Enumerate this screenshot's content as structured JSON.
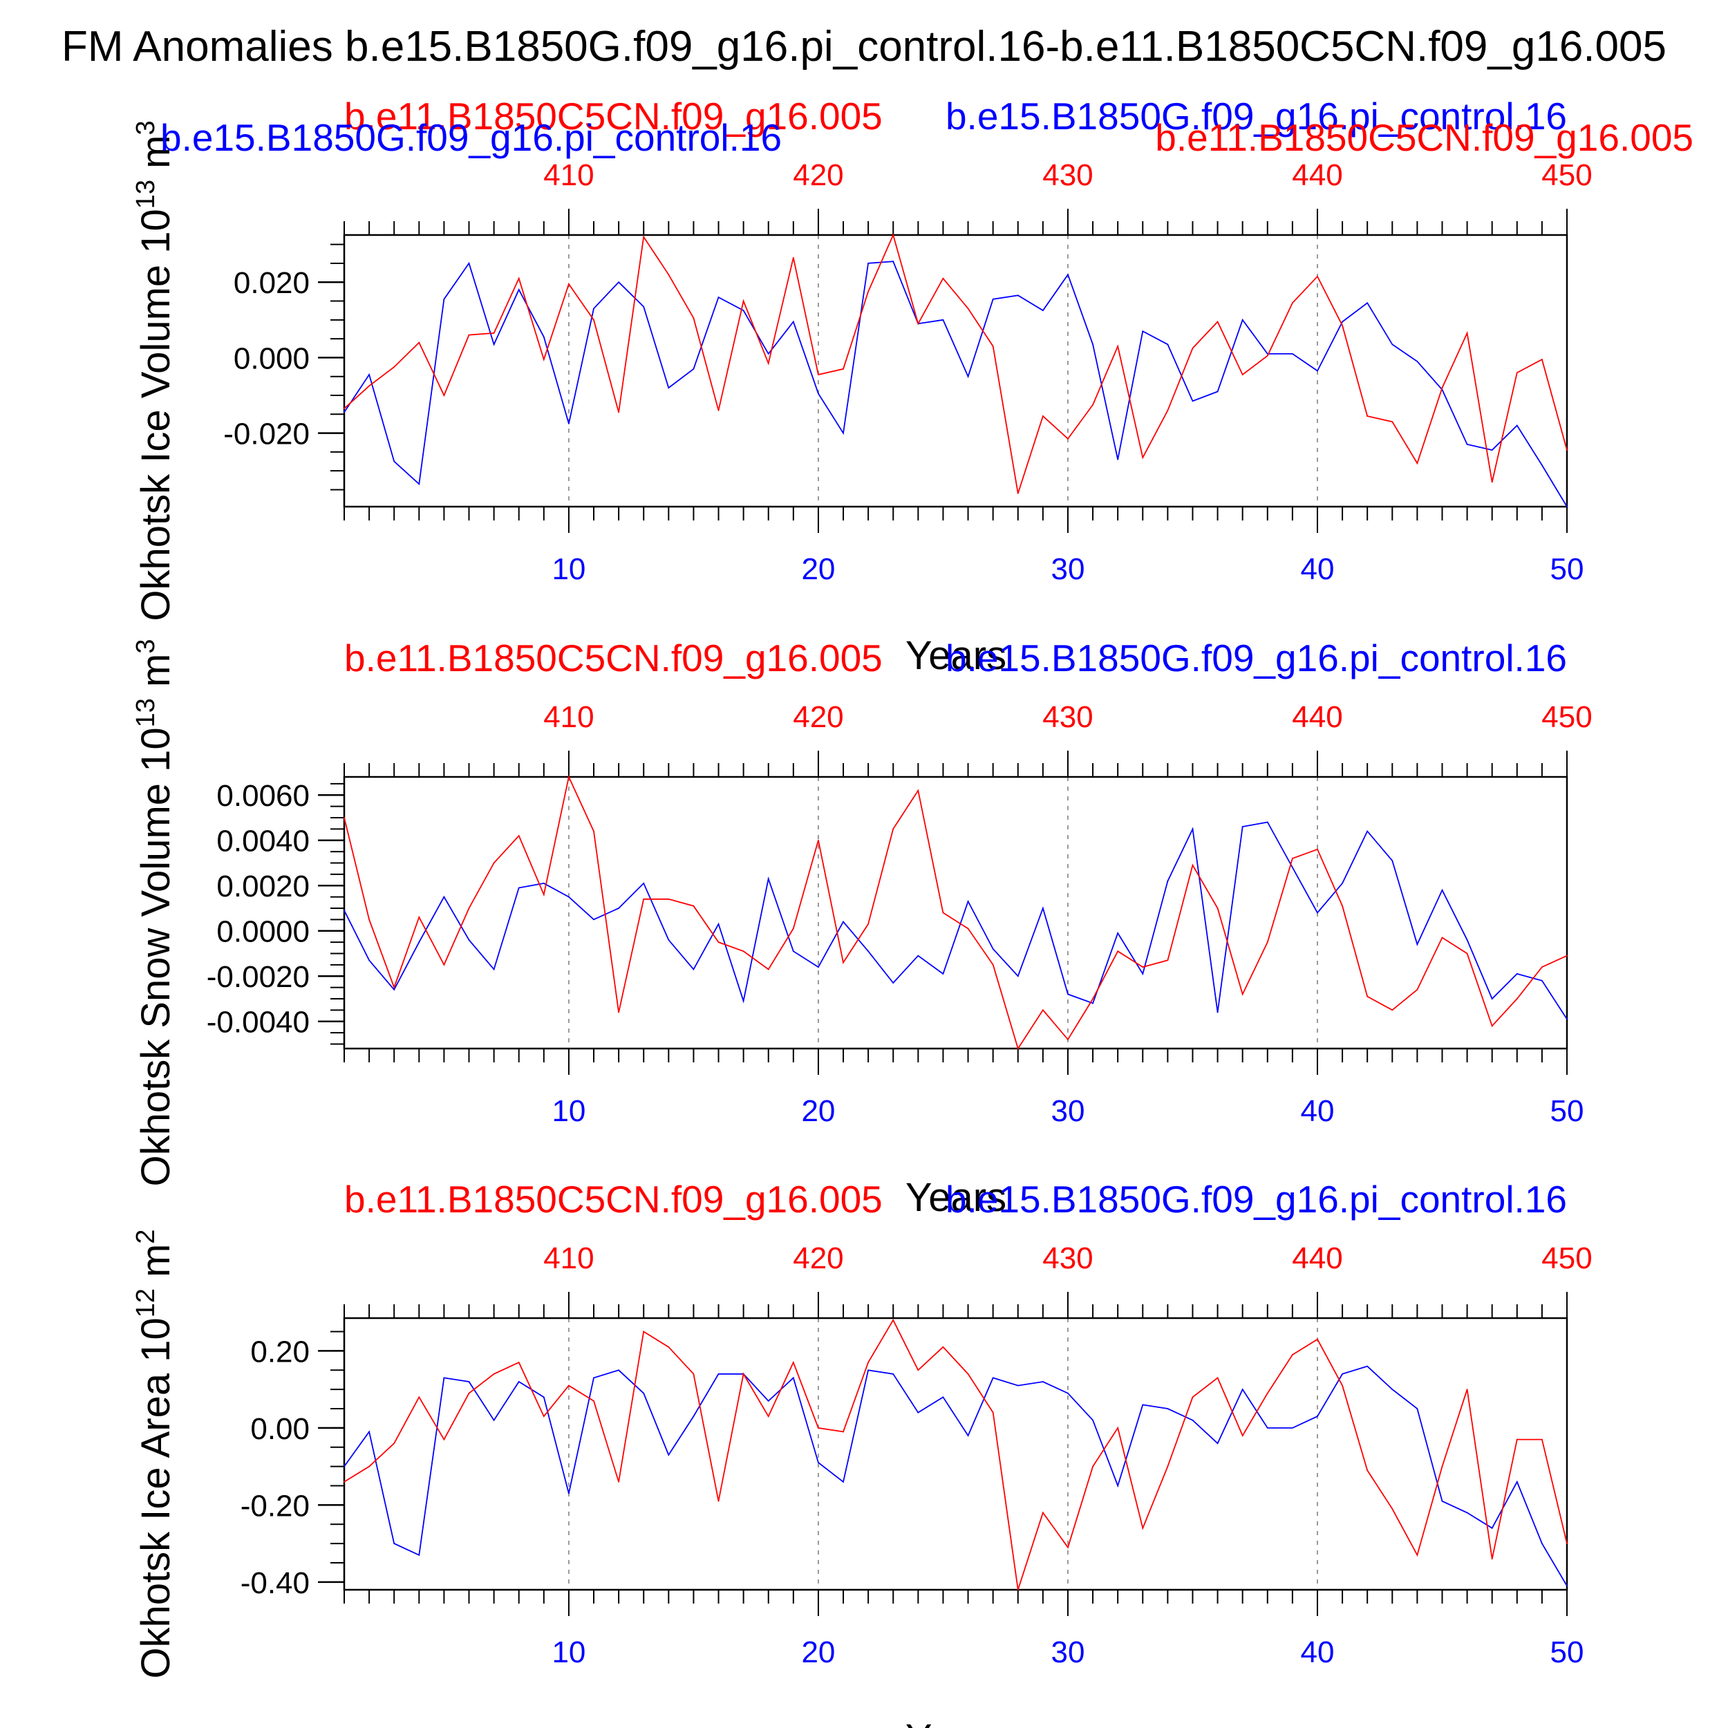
{
  "figure": {
    "title": "FM Anomalies b.e15.B1850G.f09_g16.pi_control.16-b.e11.B1850C5CN.f09_g16.005",
    "series_colors": {
      "b.e15.B1850G.f09_g16.pi_control.16": "#0000ff",
      "b.e11.B1850C5CN.f09_g16.005": "#ff0000"
    },
    "overlap_labels": {
      "left_blue": "b.e15.B1850G.f09_g16.pi_control.16",
      "right_red": "b.e11.B1850C5CN.f09_g16.005"
    }
  },
  "chart_data": [
    {
      "type": "line",
      "panel": "ice-volume",
      "top_left_label": "b.e11.B1850C5CN.f09_g16.005",
      "top_right_label": "b.e15.B1850G.f09_g16.pi_control.16",
      "xlabel": "Years",
      "ylabel": "Okhotsk Ice Volume 10",
      "ylabel_exp": "13",
      "ylabel_unit": " m",
      "ylabel_unit_exp": "3",
      "xlim": [
        1,
        50
      ],
      "ylim": [
        -0.0395,
        0.0325
      ],
      "yticks": [
        -0.02,
        0.0,
        0.02
      ],
      "ytick_labels": [
        "-0.020",
        "0.000",
        "0.020"
      ],
      "ytick_minor_step": 0.005,
      "xticks_bottom": [
        10,
        20,
        30,
        40,
        50
      ],
      "xticks_top_labels": [
        "410",
        "420",
        "430",
        "440",
        "450"
      ],
      "series": [
        {
          "name": "b.e15.B1850G.f09_g16.pi_control.16",
          "color": "#0000ff",
          "x": [
            1,
            2,
            3,
            4,
            5,
            6,
            7,
            8,
            9,
            10,
            11,
            12,
            13,
            14,
            15,
            16,
            17,
            18,
            19,
            20,
            21,
            22,
            23,
            24,
            25,
            26,
            27,
            28,
            29,
            30,
            31,
            32,
            33,
            34,
            35,
            36,
            37,
            38,
            39,
            40,
            41,
            42,
            43,
            44,
            45,
            46,
            47,
            48,
            49,
            50
          ],
          "values": [
            -0.0145,
            -0.0045,
            -0.0275,
            -0.0335,
            0.0155,
            0.025,
            0.0035,
            0.018,
            0.0055,
            -0.0175,
            0.013,
            0.02,
            0.0135,
            -0.008,
            -0.003,
            0.016,
            0.0125,
            0.001,
            0.0095,
            -0.0095,
            -0.02,
            0.025,
            0.0255,
            0.009,
            0.01,
            -0.005,
            0.0155,
            0.0165,
            0.0125,
            0.022,
            0.0035,
            -0.027,
            0.007,
            0.0035,
            -0.0115,
            -0.009,
            0.01,
            0.001,
            0.001,
            -0.0035,
            0.0095,
            0.0145,
            0.0035,
            -0.001,
            -0.0085,
            -0.023,
            -0.0245,
            -0.018,
            -0.0285,
            -0.0395
          ]
        },
        {
          "name": "b.e11.B1850C5CN.f09_g16.005",
          "color": "#ff0000",
          "x": [
            1,
            2,
            3,
            4,
            5,
            6,
            7,
            8,
            9,
            10,
            11,
            12,
            13,
            14,
            15,
            16,
            17,
            18,
            19,
            20,
            21,
            22,
            23,
            24,
            25,
            26,
            27,
            28,
            29,
            30,
            31,
            32,
            33,
            34,
            35,
            36,
            37,
            38,
            39,
            40,
            41,
            42,
            43,
            44,
            45,
            46,
            47,
            48,
            49,
            50
          ],
          "values": [
            -0.0135,
            -0.0075,
            -0.0025,
            0.004,
            -0.01,
            0.006,
            0.0065,
            0.021,
            -0.0005,
            0.0195,
            0.01,
            -0.0145,
            0.032,
            0.022,
            0.0105,
            -0.014,
            0.015,
            -0.0015,
            0.0265,
            -0.0045,
            -0.003,
            0.0175,
            0.0325,
            0.009,
            0.021,
            0.013,
            0.003,
            -0.036,
            -0.0155,
            -0.0215,
            -0.0125,
            0.003,
            -0.0265,
            -0.014,
            0.0025,
            0.0095,
            -0.0045,
            0.0005,
            0.0145,
            0.0215,
            0.0085,
            -0.0155,
            -0.017,
            -0.028,
            -0.008,
            0.0065,
            -0.033,
            -0.004,
            -0.0005,
            -0.0245
          ]
        }
      ]
    },
    {
      "type": "line",
      "panel": "snow-volume",
      "top_left_label": "b.e11.B1850C5CN.f09_g16.005",
      "top_right_label": "b.e15.B1850G.f09_g16.pi_control.16",
      "xlabel": "Years",
      "ylabel": "Okhotsk Snow Volume 10",
      "ylabel_exp": "13",
      "ylabel_unit": " m",
      "ylabel_unit_exp": "3",
      "xlim": [
        1,
        50
      ],
      "ylim": [
        -0.0052,
        0.0068
      ],
      "yticks": [
        -0.004,
        -0.002,
        0.0,
        0.002,
        0.004,
        0.006
      ],
      "ytick_labels": [
        "-0.0040",
        "-0.0020",
        "0.0000",
        "0.0020",
        "0.0040",
        "0.0060"
      ],
      "ytick_minor_step": 0.0005,
      "xticks_bottom": [
        10,
        20,
        30,
        40,
        50
      ],
      "xticks_top_labels": [
        "410",
        "420",
        "430",
        "440",
        "450"
      ],
      "series": [
        {
          "name": "b.e15.B1850G.f09_g16.pi_control.16",
          "color": "#0000ff",
          "x": [
            1,
            2,
            3,
            4,
            5,
            6,
            7,
            8,
            9,
            10,
            11,
            12,
            13,
            14,
            15,
            16,
            17,
            18,
            19,
            20,
            21,
            22,
            23,
            24,
            25,
            26,
            27,
            28,
            29,
            30,
            31,
            32,
            33,
            34,
            35,
            36,
            37,
            38,
            39,
            40,
            41,
            42,
            43,
            44,
            45,
            46,
            47,
            48,
            49,
            50
          ],
          "values": [
            0.0009,
            -0.0013,
            -0.0026,
            -0.0005,
            0.0015,
            -0.0004,
            -0.0017,
            0.0019,
            0.0021,
            0.0015,
            0.0005,
            0.001,
            0.0021,
            -0.0004,
            -0.0017,
            0.0003,
            -0.0031,
            0.0023,
            -0.0009,
            -0.0016,
            0.0004,
            -0.0009,
            -0.0023,
            -0.0011,
            -0.0019,
            0.0013,
            -0.0008,
            -0.002,
            0.001,
            -0.0028,
            -0.0032,
            -0.0001,
            -0.0019,
            0.0022,
            0.0045,
            -0.0036,
            0.0046,
            0.0048,
            0.0028,
            0.0008,
            0.0021,
            0.0044,
            0.0031,
            -0.0006,
            0.0018,
            -0.0004,
            -0.003,
            -0.0019,
            -0.0022,
            -0.0039
          ]
        },
        {
          "name": "b.e11.B1850C5CN.f09_g16.005",
          "color": "#ff0000",
          "x": [
            1,
            2,
            3,
            4,
            5,
            6,
            7,
            8,
            9,
            10,
            11,
            12,
            13,
            14,
            15,
            16,
            17,
            18,
            19,
            20,
            21,
            22,
            23,
            24,
            25,
            26,
            27,
            28,
            29,
            30,
            31,
            32,
            33,
            34,
            35,
            36,
            37,
            38,
            39,
            40,
            41,
            42,
            43,
            44,
            45,
            46,
            47,
            48,
            49,
            50
          ],
          "values": [
            0.005,
            0.0005,
            -0.0025,
            0.0006,
            -0.0015,
            0.001,
            0.003,
            0.0042,
            0.0016,
            0.0068,
            0.0044,
            -0.0036,
            0.0014,
            0.0014,
            0.0011,
            -0.0005,
            -0.0009,
            -0.0017,
            0.0001,
            0.004,
            -0.0014,
            0.0003,
            0.0045,
            0.0062,
            0.0008,
            0.0001,
            -0.0015,
            -0.0052,
            -0.0035,
            -0.0048,
            -0.003,
            -0.0009,
            -0.0016,
            -0.0013,
            0.0029,
            0.001,
            -0.0028,
            -0.0005,
            0.0032,
            0.0036,
            0.0011,
            -0.0029,
            -0.0035,
            -0.0026,
            -0.0003,
            -0.001,
            -0.0042,
            -0.003,
            -0.0016,
            -0.0011
          ]
        }
      ]
    },
    {
      "type": "line",
      "panel": "ice-area",
      "top_left_label": "b.e11.B1850C5CN.f09_g16.005",
      "top_right_label": "b.e15.B1850G.f09_g16.pi_control.16",
      "xlabel": "Years",
      "ylabel": "Okhotsk Ice Area 10",
      "ylabel_exp": "12",
      "ylabel_unit": " m",
      "ylabel_unit_exp": "2",
      "xlim": [
        1,
        50
      ],
      "ylim": [
        -0.42,
        0.285
      ],
      "yticks": [
        -0.4,
        -0.2,
        0.0,
        0.2
      ],
      "ytick_labels": [
        "-0.40",
        "-0.20",
        "0.00",
        "0.20"
      ],
      "ytick_minor_step": 0.05,
      "xticks_bottom": [
        10,
        20,
        30,
        40,
        50
      ],
      "xticks_top_labels": [
        "410",
        "420",
        "430",
        "440",
        "450"
      ],
      "series": [
        {
          "name": "b.e15.B1850G.f09_g16.pi_control.16",
          "color": "#0000ff",
          "x": [
            1,
            2,
            3,
            4,
            5,
            6,
            7,
            8,
            9,
            10,
            11,
            12,
            13,
            14,
            15,
            16,
            17,
            18,
            19,
            20,
            21,
            22,
            23,
            24,
            25,
            26,
            27,
            28,
            29,
            30,
            31,
            32,
            33,
            34,
            35,
            36,
            37,
            38,
            39,
            40,
            41,
            42,
            43,
            44,
            45,
            46,
            47,
            48,
            49,
            50
          ],
          "values": [
            -0.1,
            -0.01,
            -0.3,
            -0.33,
            0.13,
            0.12,
            0.02,
            0.12,
            0.08,
            -0.17,
            0.13,
            0.15,
            0.09,
            -0.07,
            0.03,
            0.14,
            0.14,
            0.07,
            0.13,
            -0.09,
            -0.14,
            0.15,
            0.14,
            0.04,
            0.08,
            -0.02,
            0.13,
            0.11,
            0.12,
            0.09,
            0.02,
            -0.15,
            0.06,
            0.05,
            0.02,
            -0.04,
            0.1,
            0.0,
            0.0,
            0.03,
            0.14,
            0.16,
            0.1,
            0.05,
            -0.19,
            -0.22,
            -0.26,
            -0.14,
            -0.3,
            -0.41
          ]
        },
        {
          "name": "b.e11.B1850C5CN.f09_g16.005",
          "color": "#ff0000",
          "x": [
            1,
            2,
            3,
            4,
            5,
            6,
            7,
            8,
            9,
            10,
            11,
            12,
            13,
            14,
            15,
            16,
            17,
            18,
            19,
            20,
            21,
            22,
            23,
            24,
            25,
            26,
            27,
            28,
            29,
            30,
            31,
            32,
            33,
            34,
            35,
            36,
            37,
            38,
            39,
            40,
            41,
            42,
            43,
            44,
            45,
            46,
            47,
            48,
            49,
            50
          ],
          "values": [
            -0.14,
            -0.1,
            -0.04,
            0.08,
            -0.03,
            0.09,
            0.14,
            0.17,
            0.03,
            0.11,
            0.07,
            -0.14,
            0.25,
            0.21,
            0.14,
            -0.19,
            0.14,
            0.03,
            0.17,
            0.0,
            -0.01,
            0.17,
            0.28,
            0.15,
            0.21,
            0.14,
            0.04,
            -0.42,
            -0.22,
            -0.31,
            -0.1,
            0.0,
            -0.26,
            -0.1,
            0.08,
            0.13,
            -0.02,
            0.09,
            0.19,
            0.23,
            0.11,
            -0.11,
            -0.21,
            -0.33,
            -0.1,
            0.1,
            -0.34,
            -0.03,
            -0.03,
            -0.3
          ]
        }
      ]
    }
  ]
}
